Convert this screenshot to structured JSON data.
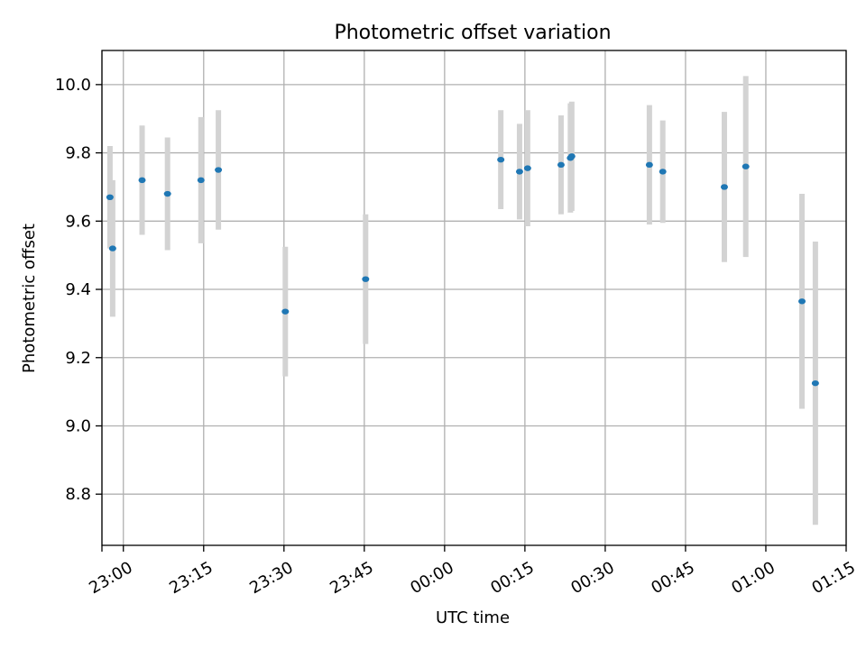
{
  "chart_data": {
    "type": "scatter",
    "title": "Photometric offset variation",
    "xlabel": "UTC time",
    "ylabel": "Photometric offset",
    "grid": true,
    "x_ticks": [
      "22:56",
      "23:00",
      "23:15",
      "23:30",
      "23:45",
      "00:00",
      "00:15",
      "00:30",
      "00:45",
      "01:00",
      "01:15"
    ],
    "x_tick_labels": [
      "",
      "23:00",
      "23:15",
      "23:30",
      "23:45",
      "00:00",
      "00:15",
      "00:30",
      "00:45",
      "01:00",
      "01:15"
    ],
    "xlim": [
      "22:56",
      "01:15"
    ],
    "ylim": [
      8.65,
      10.1
    ],
    "y_ticks": [
      8.8,
      9.0,
      9.2,
      9.4,
      9.6,
      9.8,
      10.0
    ],
    "y_tick_labels": [
      "8.8",
      "9.0",
      "9.2",
      "9.4",
      "9.6",
      "9.8",
      "10.0"
    ],
    "marker_color": "#1f77b4",
    "errorbar_color": "#d3d3d3",
    "series": [
      {
        "points": [
          {
            "x": "22:57:30",
            "y": 9.67,
            "err": 0.15
          },
          {
            "x": "22:58:00",
            "y": 9.52,
            "err": 0.2
          },
          {
            "x": "23:03:30",
            "y": 9.72,
            "err": 0.16
          },
          {
            "x": "23:08:15",
            "y": 9.68,
            "err": 0.165
          },
          {
            "x": "23:14:30",
            "y": 9.72,
            "err": 0.185
          },
          {
            "x": "23:17:45",
            "y": 9.75,
            "err": 0.175
          },
          {
            "x": "23:30:15",
            "y": 9.335,
            "err": 0.19
          },
          {
            "x": "23:45:15",
            "y": 9.43,
            "err": 0.19
          },
          {
            "x": "00:10:30",
            "y": 9.78,
            "err": 0.145
          },
          {
            "x": "00:14:00",
            "y": 9.745,
            "err": 0.14
          },
          {
            "x": "00:15:30",
            "y": 9.755,
            "err": 0.17
          },
          {
            "x": "00:21:45",
            "y": 9.765,
            "err": 0.145
          },
          {
            "x": "00:23:30",
            "y": 9.785,
            "err": 0.16
          },
          {
            "x": "00:23:45",
            "y": 9.79,
            "err": 0.16
          },
          {
            "x": "00:38:15",
            "y": 9.765,
            "err": 0.175
          },
          {
            "x": "00:40:45",
            "y": 9.745,
            "err": 0.15
          },
          {
            "x": "00:52:15",
            "y": 9.7,
            "err": 0.22
          },
          {
            "x": "00:56:15",
            "y": 9.76,
            "err": 0.265
          },
          {
            "x": "01:06:45",
            "y": 9.365,
            "err": 0.315
          },
          {
            "x": "01:09:15",
            "y": 9.125,
            "err": 0.415
          }
        ]
      }
    ]
  }
}
